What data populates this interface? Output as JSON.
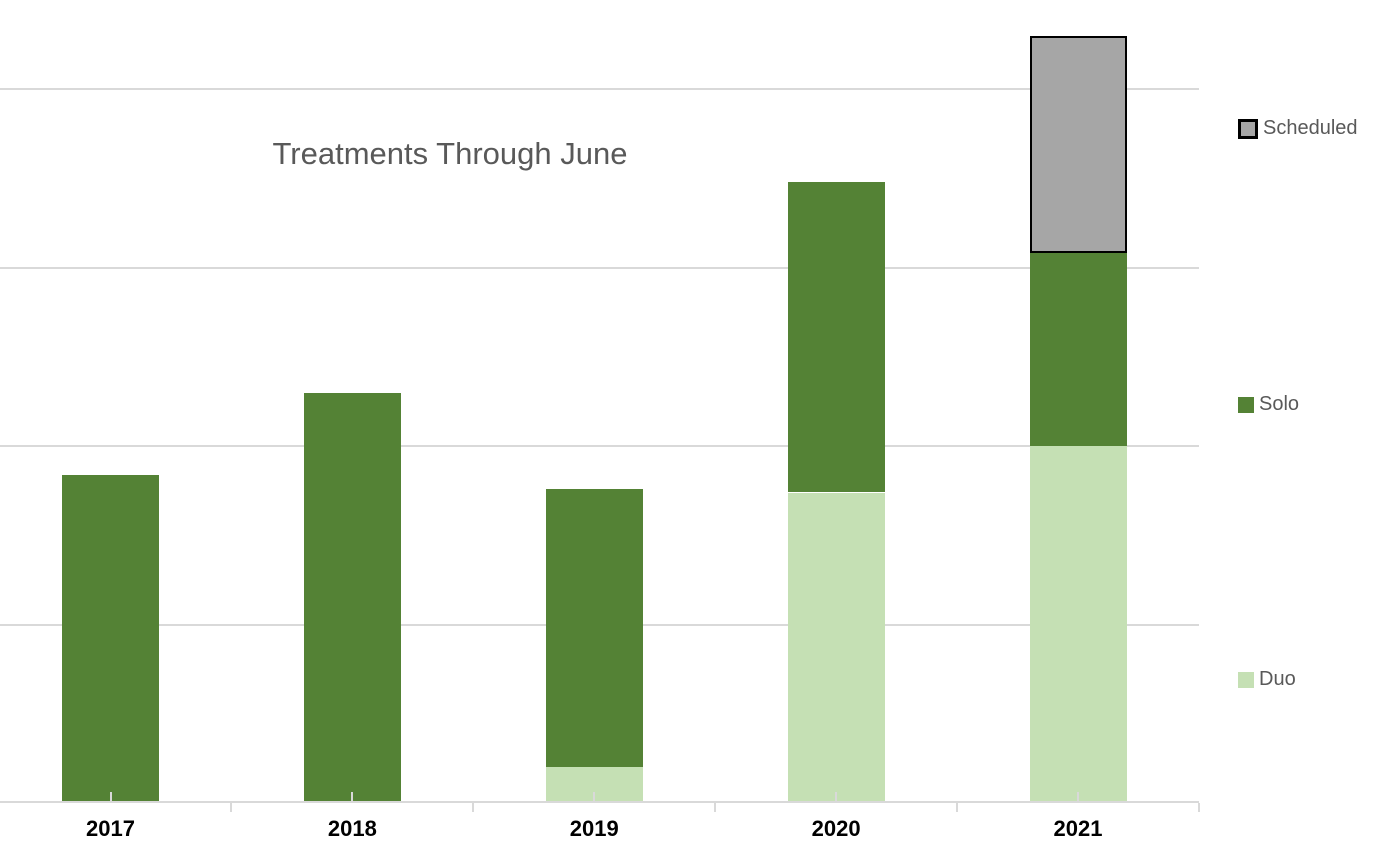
{
  "legend": {
    "items": [
      {
        "label": "Scheduled"
      },
      {
        "label": "Solo"
      },
      {
        "label": "Duo"
      }
    ]
  },
  "style": {
    "background": "#FFFFFF",
    "gridline_color": "#D9D9D9",
    "axis_color": "#D9D9D9",
    "title_color": "#595959",
    "legend_text_color": "#595959",
    "x_label_color": "#000000",
    "scheduled_border_color": "#000000"
  },
  "chart_data": {
    "type": "bar",
    "stacked": true,
    "title": "Treatments Through June",
    "categories": [
      "2017",
      "2018",
      "2019",
      "2020",
      "2021"
    ],
    "series": [
      {
        "name": "Duo",
        "color": "#C5E0B4",
        "values": [
          0,
          0,
          10,
          87,
          100
        ]
      },
      {
        "name": "Solo",
        "color": "#548235",
        "values": [
          92,
          115,
          78,
          87,
          54
        ]
      },
      {
        "name": "Scheduled",
        "color": "#A6A6A6",
        "border_color": "#000000",
        "values": [
          0,
          0,
          0,
          0,
          61
        ]
      }
    ],
    "xlabel": "",
    "ylabel": "",
    "ylim": [
      0,
      225
    ],
    "gridline_values": [
      50,
      100,
      150,
      200
    ],
    "y_axis_labels_visible": false,
    "gridlines_on": true,
    "legend_position": "right",
    "legend_order": [
      "Scheduled",
      "Solo",
      "Duo"
    ]
  }
}
